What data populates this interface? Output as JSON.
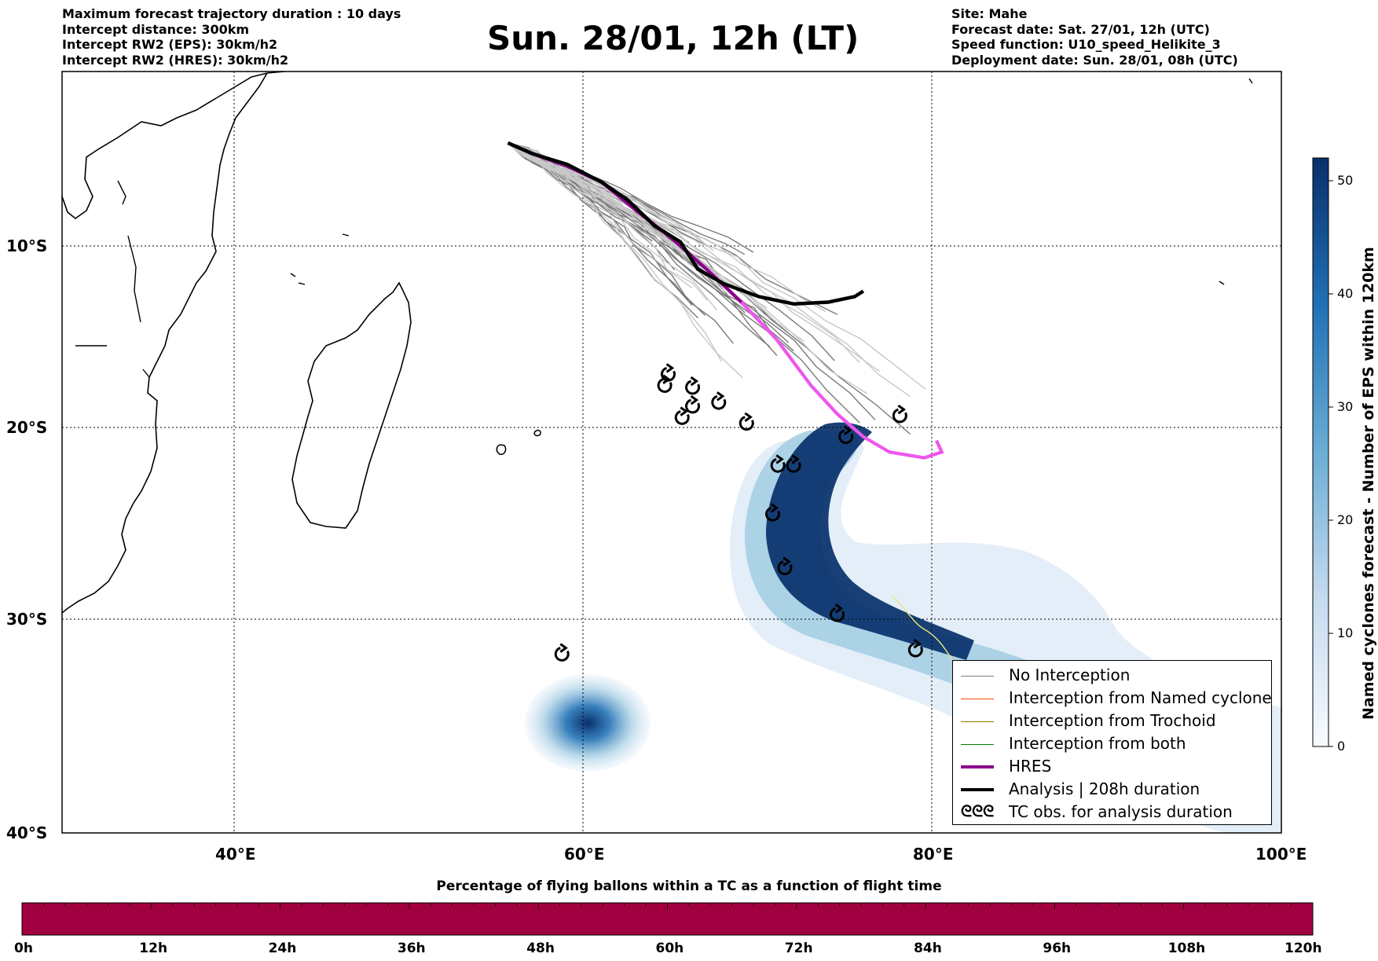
{
  "header_left": [
    "Maximum forecast trajectory duration : 10 days",
    "Intercept distance: 300km",
    "Intercept RW2 (EPS):  30km/h2",
    "Intercept RW2 (HRES): 30km/h2"
  ],
  "title": "Sun. 28/01, 12h (LT)",
  "header_right": [
    "Site: Mahe",
    "Forecast date: Sat. 27/01, 12h (UTC)",
    "Speed function: U10_speed_Helikite_3",
    "Deployment date: Sun. 28/01, 08h (UTC)"
  ],
  "map": {
    "lon_range": [
      30,
      100
    ],
    "lat_range": [
      -40,
      -1
    ],
    "lon_ticks": [
      "40°E",
      "60°E",
      "80°E",
      "100°E"
    ],
    "lat_ticks": [
      "10°S",
      "20°S",
      "30°S",
      "40°S"
    ]
  },
  "legend": [
    {
      "label": "No Interception",
      "color": "#808080",
      "style": "thin"
    },
    {
      "label": "Interception from Named cyclone",
      "color": "#ff4500",
      "style": "thin"
    },
    {
      "label": "Interception from Trochoid",
      "color": "#808000",
      "style": "thin"
    },
    {
      "label": "Interception from both",
      "color": "#008000",
      "style": "thin"
    },
    {
      "label": "HRES",
      "color": "#8b008b",
      "style": "thick"
    },
    {
      "label": "Analysis | 208h duration",
      "color": "#000000",
      "style": "thick"
    },
    {
      "label": "TC obs. for analysis duration",
      "color": "#000000",
      "style": "symbol",
      "symbol": "ᘓᘓᘓ"
    }
  ],
  "colorbar": {
    "label": "Named cyclones forecast - Number of EPS within 120km",
    "ticks": [
      "0",
      "10",
      "20",
      "30",
      "40",
      "50"
    ],
    "range": [
      0,
      52
    ],
    "colors": [
      "#f7fbff",
      "#08306b"
    ]
  },
  "flight_bar": {
    "title": "Percentage of flying ballons within a TC as a function of flight time",
    "ticks": [
      "0h",
      "12h",
      "24h",
      "36h",
      "48h",
      "60h",
      "72h",
      "84h",
      "96h",
      "108h",
      "120h"
    ],
    "color": "#a00040"
  },
  "tracks": {
    "hres": [
      [
        55.6,
        -5.0
      ],
      [
        57,
        -5.6
      ],
      [
        59,
        -6.3
      ],
      [
        61,
        -7.2
      ],
      [
        63,
        -8.8
      ],
      [
        65,
        -10.3
      ],
      [
        67,
        -12
      ],
      [
        69,
        -13.8
      ],
      [
        71,
        -15.8
      ],
      [
        73,
        -18.3
      ],
      [
        74.5,
        -19.8
      ],
      [
        76,
        -21
      ],
      [
        77.5,
        -21.8
      ],
      [
        79.5,
        -22.1
      ],
      [
        80.5,
        -21.8
      ],
      [
        80.2,
        -21.2
      ]
    ],
    "analysis": [
      [
        55.6,
        -5.0
      ],
      [
        57,
        -5.6
      ],
      [
        59,
        -6.2
      ],
      [
        61,
        -7.2
      ],
      [
        62.5,
        -8.2
      ],
      [
        64,
        -9.6
      ],
      [
        65.5,
        -10.5
      ],
      [
        66.5,
        -12
      ],
      [
        68,
        -12.8
      ],
      [
        70,
        -13.5
      ],
      [
        72,
        -13.9
      ],
      [
        74,
        -13.8
      ],
      [
        75.5,
        -13.5
      ],
      [
        76,
        -13.2
      ]
    ],
    "tc_obs": [
      [
        64.6,
        -18.3
      ],
      [
        64.8,
        -17.7
      ],
      [
        66.2,
        -18.4
      ],
      [
        66.2,
        -19.4
      ],
      [
        65.6,
        -20
      ],
      [
        67.7,
        -19.2
      ],
      [
        69.3,
        -20.3
      ],
      [
        71.1,
        -22.5
      ],
      [
        72,
        -22.5
      ],
      [
        70.8,
        -25
      ],
      [
        71.5,
        -27.7
      ],
      [
        74.5,
        -30
      ],
      [
        79.0,
        -31.7
      ],
      [
        75,
        -21
      ],
      [
        78.1,
        -19.9
      ],
      [
        58.7,
        -31.9
      ]
    ]
  }
}
